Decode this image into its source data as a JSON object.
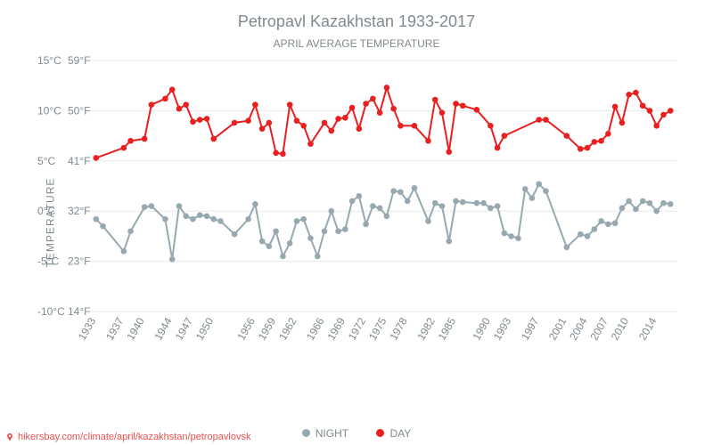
{
  "title": "Petropavl Kazakhstan 1933-2017",
  "subtitle": "APRIL AVERAGE TEMPERATURE",
  "ylabel": "TEMPERATURE",
  "footer_url": "hikersbay.com/climate/april/kazakhstan/petropavlovsk",
  "chart": {
    "type": "line",
    "background_color": "#ffffff",
    "grid_color": "#e9e9e9",
    "text_color": "#7f8a8f",
    "title_fontsize": 18,
    "subtitle_fontsize": 12,
    "axis_fontsize": 12,
    "ylim_c": [
      -10,
      15
    ],
    "y_ticks_c": [
      -10,
      -5,
      0,
      5,
      10,
      15
    ],
    "y_tick_labels_left": [
      "-10°C",
      "-5°C",
      "0°C",
      "5°C",
      "10°C",
      "15°C"
    ],
    "y_tick_labels_right": [
      "14°F",
      "23°F",
      "32°F",
      "41°F",
      "50°F",
      "59°F"
    ],
    "x_ticks": [
      1933,
      1937,
      1940,
      1944,
      1947,
      1950,
      1956,
      1959,
      1962,
      1966,
      1969,
      1972,
      1975,
      1978,
      1982,
      1985,
      1990,
      1993,
      1997,
      2001,
      2004,
      2007,
      2010,
      2014
    ],
    "x_tick_rotation": -60,
    "xlim": [
      1932,
      2017
    ],
    "line_width": 2,
    "marker_radius": 3.3,
    "marker_style": "circle",
    "series": {
      "night": {
        "label": "NIGHT",
        "color": "#97a9b0",
        "years": [
          1933,
          1934,
          1937,
          1938,
          1940,
          1941,
          1943,
          1944,
          1945,
          1946,
          1947,
          1948,
          1949,
          1950,
          1951,
          1953,
          1955,
          1956,
          1957,
          1958,
          1959,
          1960,
          1961,
          1962,
          1963,
          1964,
          1965,
          1966,
          1967,
          1968,
          1969,
          1970,
          1971,
          1972,
          1973,
          1974,
          1975,
          1976,
          1977,
          1978,
          1979,
          1981,
          1982,
          1983,
          1984,
          1985,
          1986,
          1988,
          1989,
          1990,
          1991,
          1992,
          1993,
          1994,
          1995,
          1996,
          1997,
          1998,
          2001,
          2003,
          2004,
          2005,
          2006,
          2007,
          2008,
          2009,
          2010,
          2011,
          2012,
          2013,
          2014,
          2015,
          2016
        ],
        "values": [
          -0.8,
          -1.5,
          -4.0,
          -2.0,
          0.4,
          0.5,
          -0.8,
          -4.8,
          0.5,
          -0.5,
          -0.8,
          -0.4,
          -0.5,
          -0.8,
          -1.0,
          -2.3,
          -0.8,
          0.7,
          -3.0,
          -3.5,
          -2.0,
          -4.5,
          -3.2,
          -1.0,
          -0.8,
          -2.7,
          -4.5,
          -2.0,
          0.0,
          -2.0,
          -1.8,
          1.0,
          1.5,
          -1.3,
          0.5,
          0.3,
          -0.5,
          2.0,
          1.9,
          1.0,
          2.3,
          -1.0,
          0.8,
          0.5,
          -3.0,
          1.0,
          0.9,
          0.8,
          0.8,
          0.3,
          0.5,
          -2.2,
          -2.5,
          -2.7,
          2.2,
          1.3,
          2.7,
          2.0,
          -3.6,
          -2.3,
          -2.5,
          -1.8,
          -1.0,
          -1.3,
          -1.2,
          0.3,
          1.0,
          0.2,
          1.0,
          0.8,
          0.0,
          0.8,
          0.7
        ]
      },
      "day": {
        "label": "DAY",
        "color": "#ea1f1f",
        "years": [
          1933,
          1937,
          1938,
          1940,
          1941,
          1943,
          1944,
          1945,
          1946,
          1947,
          1948,
          1949,
          1950,
          1953,
          1955,
          1956,
          1957,
          1958,
          1959,
          1960,
          1961,
          1962,
          1963,
          1964,
          1966,
          1967,
          1968,
          1969,
          1970,
          1971,
          1972,
          1973,
          1974,
          1975,
          1976,
          1977,
          1979,
          1981,
          1982,
          1983,
          1984,
          1985,
          1986,
          1988,
          1990,
          1991,
          1992,
          1997,
          1998,
          2001,
          2003,
          2004,
          2005,
          2006,
          2007,
          2008,
          2009,
          2010,
          2011,
          2012,
          2013,
          2014,
          2015,
          2016
        ],
        "values": [
          5.3,
          6.3,
          7.0,
          7.2,
          10.6,
          11.2,
          12.1,
          10.2,
          10.6,
          8.9,
          9.1,
          9.2,
          7.2,
          8.8,
          9.0,
          10.6,
          8.2,
          8.8,
          5.8,
          5.7,
          10.6,
          9.0,
          8.5,
          6.7,
          8.8,
          8.0,
          9.2,
          9.3,
          10.3,
          8.2,
          10.7,
          11.2,
          9.8,
          12.3,
          10.2,
          8.5,
          8.5,
          7.0,
          11.1,
          9.8,
          5.9,
          10.7,
          10.5,
          10.1,
          8.5,
          6.3,
          7.5,
          9.1,
          9.1,
          7.5,
          6.2,
          6.3,
          6.9,
          7.0,
          7.7,
          10.4,
          8.8,
          11.6,
          11.8,
          10.5,
          10.0,
          8.5,
          9.6,
          10.0
        ]
      }
    },
    "legend": {
      "position": "bottom-center",
      "items": [
        "night",
        "day"
      ]
    }
  }
}
